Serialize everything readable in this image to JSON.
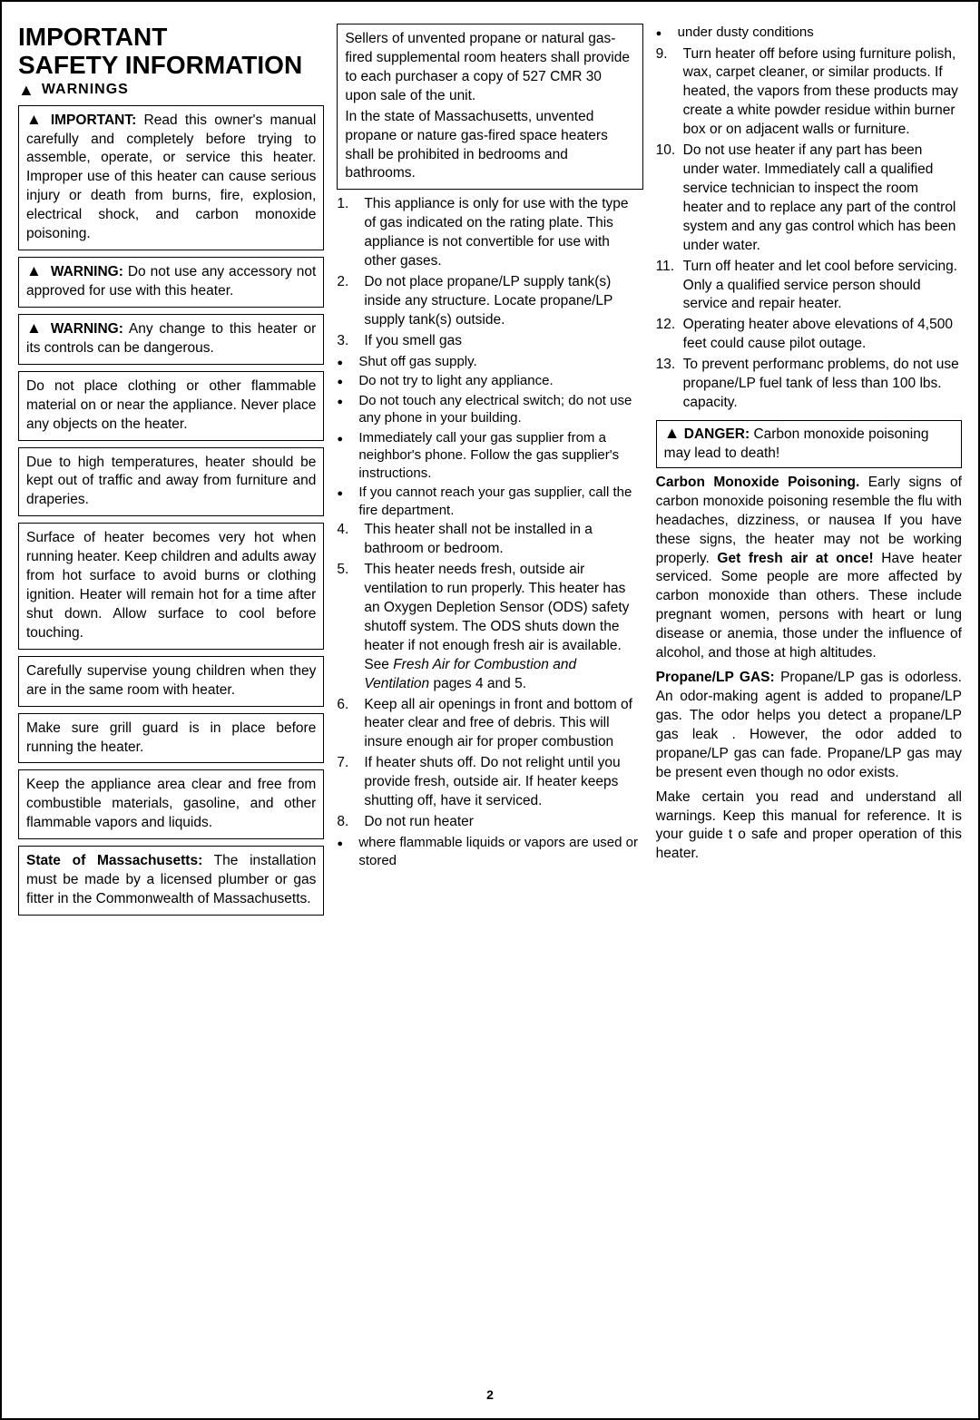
{
  "page_number": "2",
  "title_line1": "IMPORTANT",
  "title_line2": "SAFETY  INFORMATION",
  "warnings_label": "WARNINGS",
  "col1_boxes": [
    {
      "icon": true,
      "head": "IMPORTANT:",
      "text": " Read this owner's manual carefully and completely before trying to assemble, operate, or service this heater. Improper use of this heater can cause serious injury or death from burns, fire, explosion, electrical shock, and carbon monoxide poisoning."
    },
    {
      "icon": true,
      "head": "WARNING:",
      "text": " Do not use any accessory not approved for use with this heater."
    },
    {
      "icon": true,
      "head": "WARNING:",
      "text": " Any change to this heater or its controls can be dangerous."
    },
    {
      "icon": false,
      "head": "",
      "text": "Do not place clothing or other flammable material on or near the appliance. Never place any objects on the heater."
    },
    {
      "icon": false,
      "head": "",
      "text": "Due to high temperatures, heater should be kept out of traffic and away from furniture and draperies."
    },
    {
      "icon": false,
      "head": "",
      "text": "Surface of heater becomes very hot when running heater. Keep children and adults away from hot surface to avoid burns or clothing ignition. Heater will remain hot for a time after shut down. Allow surface to cool before touching."
    },
    {
      "icon": false,
      "head": "",
      "text": "Carefully supervise young children when they are in the same room with heater."
    },
    {
      "icon": false,
      "head": "",
      "text": "Make sure grill guard is in place before running the heater."
    },
    {
      "icon": false,
      "head": "",
      "text": "Keep the appliance area clear and free from combustible materials, gasoline, and other flammable vapors and liquids."
    },
    {
      "icon": false,
      "head": "State of Massachusetts:",
      "text": " The installation must be made by a licensed plumber or gas fitter in the Commonwealth of Massachusetts."
    }
  ],
  "col2_box_p1": "Sellers of unvented propane or natural gas-fired supplemental room heaters shall provide to each purchaser a copy of 527 CMR 30 upon sale of the unit.",
  "col2_box_p2": "In the state of Massachusetts, unvented propane or nature gas-fired space heaters shall be prohibited in bedrooms and bathrooms.",
  "numbered": [
    "This appliance is only for use with the type of gas indicated on the rating plate. This appliance is not convertible for use with other gases.",
    "Do not place propane/LP supply tank(s) inside any structure. Locate propane/LP supply tank(s) outside.",
    "If you smell gas",
    "This heater shall not be installed in a bathroom or bedroom.",
    "This heater needs fresh, outside air ventilation to run properly. This heater has an Oxygen Depletion Sensor (ODS) safety shutoff system. The ODS shuts down the heater if not enough fresh air is available. See ",
    "Keep all air openings in front and bottom of heater clear and free of debris. This will insure enough air for proper combustion",
    "If heater shuts off. Do not relight until you provide fresh, outside air. If heater keeps shutting off, have it serviced.",
    "Do not run heater"
  ],
  "item5_ital": "Fresh Air for Combustion and Ventilation",
  "item5_tail": " pages 4 and 5.",
  "gas_bullets": [
    "Shut off gas supply.",
    "Do not try to light any appliance.",
    "Do not touch any electrical switch; do not use any phone in your building.",
    "Immediately call your gas supplier from a neighbor's phone. Follow the gas supplier's instructions.",
    "If you cannot reach your gas supplier, call the fire department."
  ],
  "item8_bullets": [
    "where flammable liquids or vapors are used or stored",
    "under dusty conditions"
  ],
  "col3_numbered": [
    {
      "n": "9.",
      "text": "Turn heater off before using furniture polish, wax, carpet cleaner, or similar products. If heated, the vapors from these products may create a white powder residue within burner box or on adjacent walls or furniture."
    },
    {
      "n": "10.",
      "text": "Do not use heater if any part has been under water. Immediately call a qualified service technician to inspect the room heater and to replace any part of the control system and any gas control which has been under water."
    },
    {
      "n": "11.",
      "text": "Turn off heater and let cool before servicing. Only a qualified service person should service and repair heater."
    },
    {
      "n": "12.",
      "text": "Operating heater above elevations of 4,500 feet could cause pilot outage."
    },
    {
      "n": "13.",
      "text": "To prevent performanc problems, do not use propane/LP fuel tank of less than 100 lbs. capacity."
    }
  ],
  "danger_head": "DANGER:",
  "danger_text": " Carbon monoxide poisoning may lead to death!",
  "co_head": "Carbon Monoxide Poisoning.",
  "co_text1": " Early signs of carbon monoxide poisoning resemble the flu with headaches, dizziness, or nausea If you have these signs, the heater may not be working properly. ",
  "co_bold": "Get fresh air at once!",
  "co_text2": " Have heater serviced. Some people are more affected by carbon monoxide than others. These include pregnant women, persons with heart or lung disease or anemia, those under the influence of alcohol, and those at high altitudes.",
  "lp_head": "Propane/LP GAS:",
  "lp_text": " Propane/LP gas is odorless. An odor-making agent is added to propane/LP gas. The odor helps you detect a propane/LP gas leak . However, the odor added to propane/LP gas can fade. Propane/LP gas may be present even though no odor exists.",
  "final_para": "Make certain you read and understand all warnings. Keep this manual for reference. It is your guide t o safe and proper operation of this heater."
}
